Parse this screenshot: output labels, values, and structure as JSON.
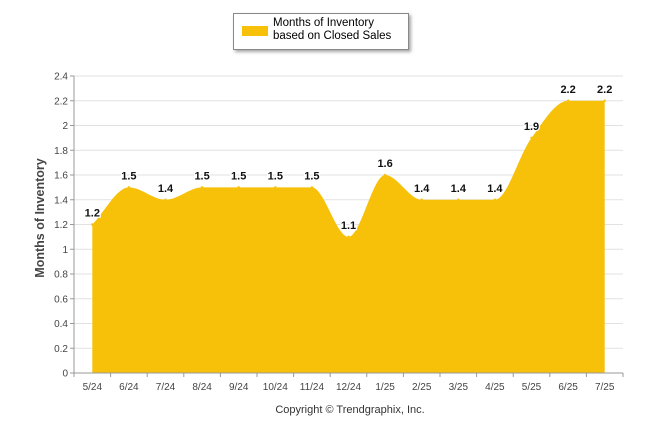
{
  "legend": {
    "label": "Months of Inventory based on Closed Sales"
  },
  "footer": {
    "copyright": "Copyright © Trendgraphix, Inc."
  },
  "colors": {
    "area_fill": "#F7C10A",
    "grid": "#e2e2e2",
    "axis": "#999999"
  },
  "chart_data": {
    "type": "area",
    "title": "",
    "xlabel": "",
    "ylabel": "Months of Inventory",
    "categories": [
      "5/24",
      "6/24",
      "7/24",
      "8/24",
      "9/24",
      "10/24",
      "11/24",
      "12/24",
      "1/25",
      "2/25",
      "3/25",
      "4/25",
      "5/25",
      "6/25",
      "7/25"
    ],
    "series": [
      {
        "name": "Months of Inventory based on Closed Sales",
        "values": [
          1.2,
          1.5,
          1.4,
          1.5,
          1.5,
          1.5,
          1.5,
          1.1,
          1.6,
          1.4,
          1.4,
          1.4,
          1.9,
          2.2,
          2.2
        ],
        "data_labels": [
          "1.2",
          "1.5",
          "1.4",
          "1.5",
          "1.5",
          "1.5",
          "1.5",
          "1.1",
          "1.6",
          "1.4",
          "1.4",
          "1.4",
          "1.9",
          "2.2",
          "2.2"
        ]
      }
    ],
    "ylim": [
      0,
      2.4
    ],
    "yticks": [
      0,
      0.2,
      0.4,
      0.6,
      0.8,
      1,
      1.2,
      1.4,
      1.6,
      1.8,
      2,
      2.2,
      2.4
    ],
    "ytick_labels": [
      "0",
      "0.2",
      "0.4",
      "0.6",
      "0.8",
      "1",
      "1.2",
      "1.4",
      "1.6",
      "1.8",
      "2",
      "2.2",
      "2.4"
    ],
    "grid": true,
    "legend_position": "top-center"
  }
}
